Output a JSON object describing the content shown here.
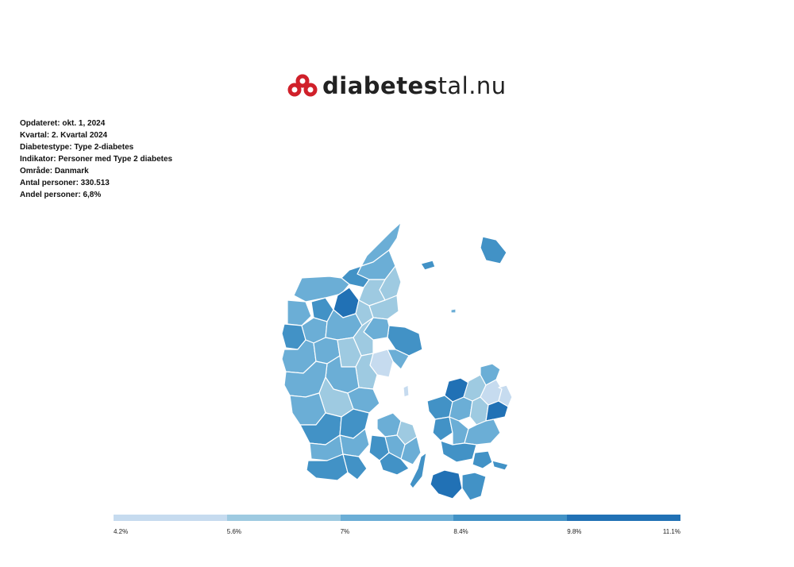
{
  "logo": {
    "text_bold": "diabetes",
    "text_light": "tal.nu",
    "icon": "pretzel-heart-icon",
    "color": "#d0202a"
  },
  "meta": [
    "Opdateret: okt. 1, 2024",
    "Kvartal: 2. Kvartal 2024",
    "Diabetestype: Type 2-diabetes",
    "Indikator: Personer med Type 2 diabetes",
    "Område: Danmark",
    "Antal personer: 330.513",
    "Andel personer: 6,8%"
  ],
  "map": {
    "region": "Danmark",
    "stroke_color": "#ffffff"
  },
  "legend": {
    "colors": [
      "#c6dbef",
      "#9ecae1",
      "#6baed6",
      "#4292c6",
      "#2171b5"
    ],
    "labels": [
      "4.2%",
      "5.6%",
      "7%",
      "8.4%",
      "9.8%",
      "11.1%"
    ]
  }
}
